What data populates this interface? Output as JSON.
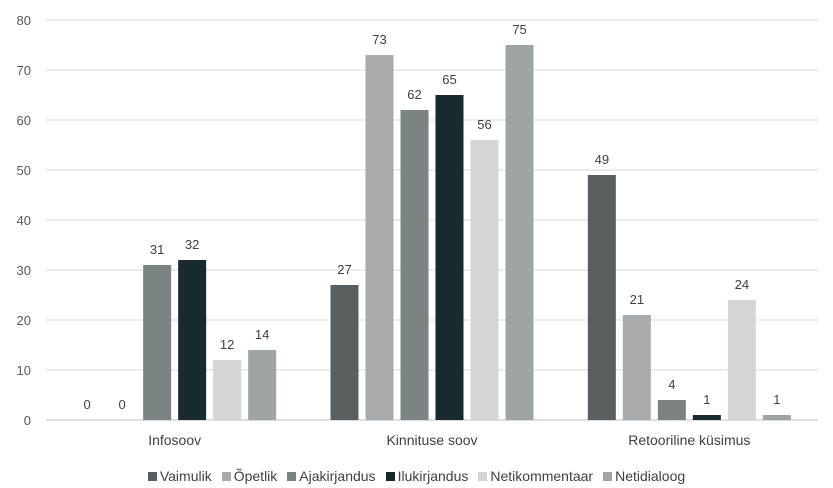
{
  "chart_data": {
    "type": "bar",
    "categories": [
      "Infosoov",
      "Kinnituse soov",
      "Retooriline küsimus"
    ],
    "ylim": [
      0,
      80
    ],
    "yticks": [
      0,
      10,
      20,
      30,
      40,
      50,
      60,
      70,
      80
    ],
    "grid": true,
    "legend_position": "bottom",
    "series": [
      {
        "name": "Vaimulik",
        "color": "#595f61",
        "values": [
          0,
          27,
          49
        ]
      },
      {
        "name": "Õpetlik",
        "color": "#a7abad",
        "values": [
          0,
          73,
          21
        ]
      },
      {
        "name": "Ajakirjandus",
        "color": "#7b8385",
        "values": [
          31,
          62,
          4
        ]
      },
      {
        "name": "Ilukirjandus",
        "color": "#182a2d",
        "values": [
          32,
          65,
          1
        ]
      },
      {
        "name": "Netikommentaar",
        "color": "#d3d5d6",
        "values": [
          12,
          56,
          24
        ]
      },
      {
        "name": "Netidialoog",
        "color": "#9fa5a5",
        "values": [
          14,
          75,
          1
        ]
      }
    ]
  }
}
